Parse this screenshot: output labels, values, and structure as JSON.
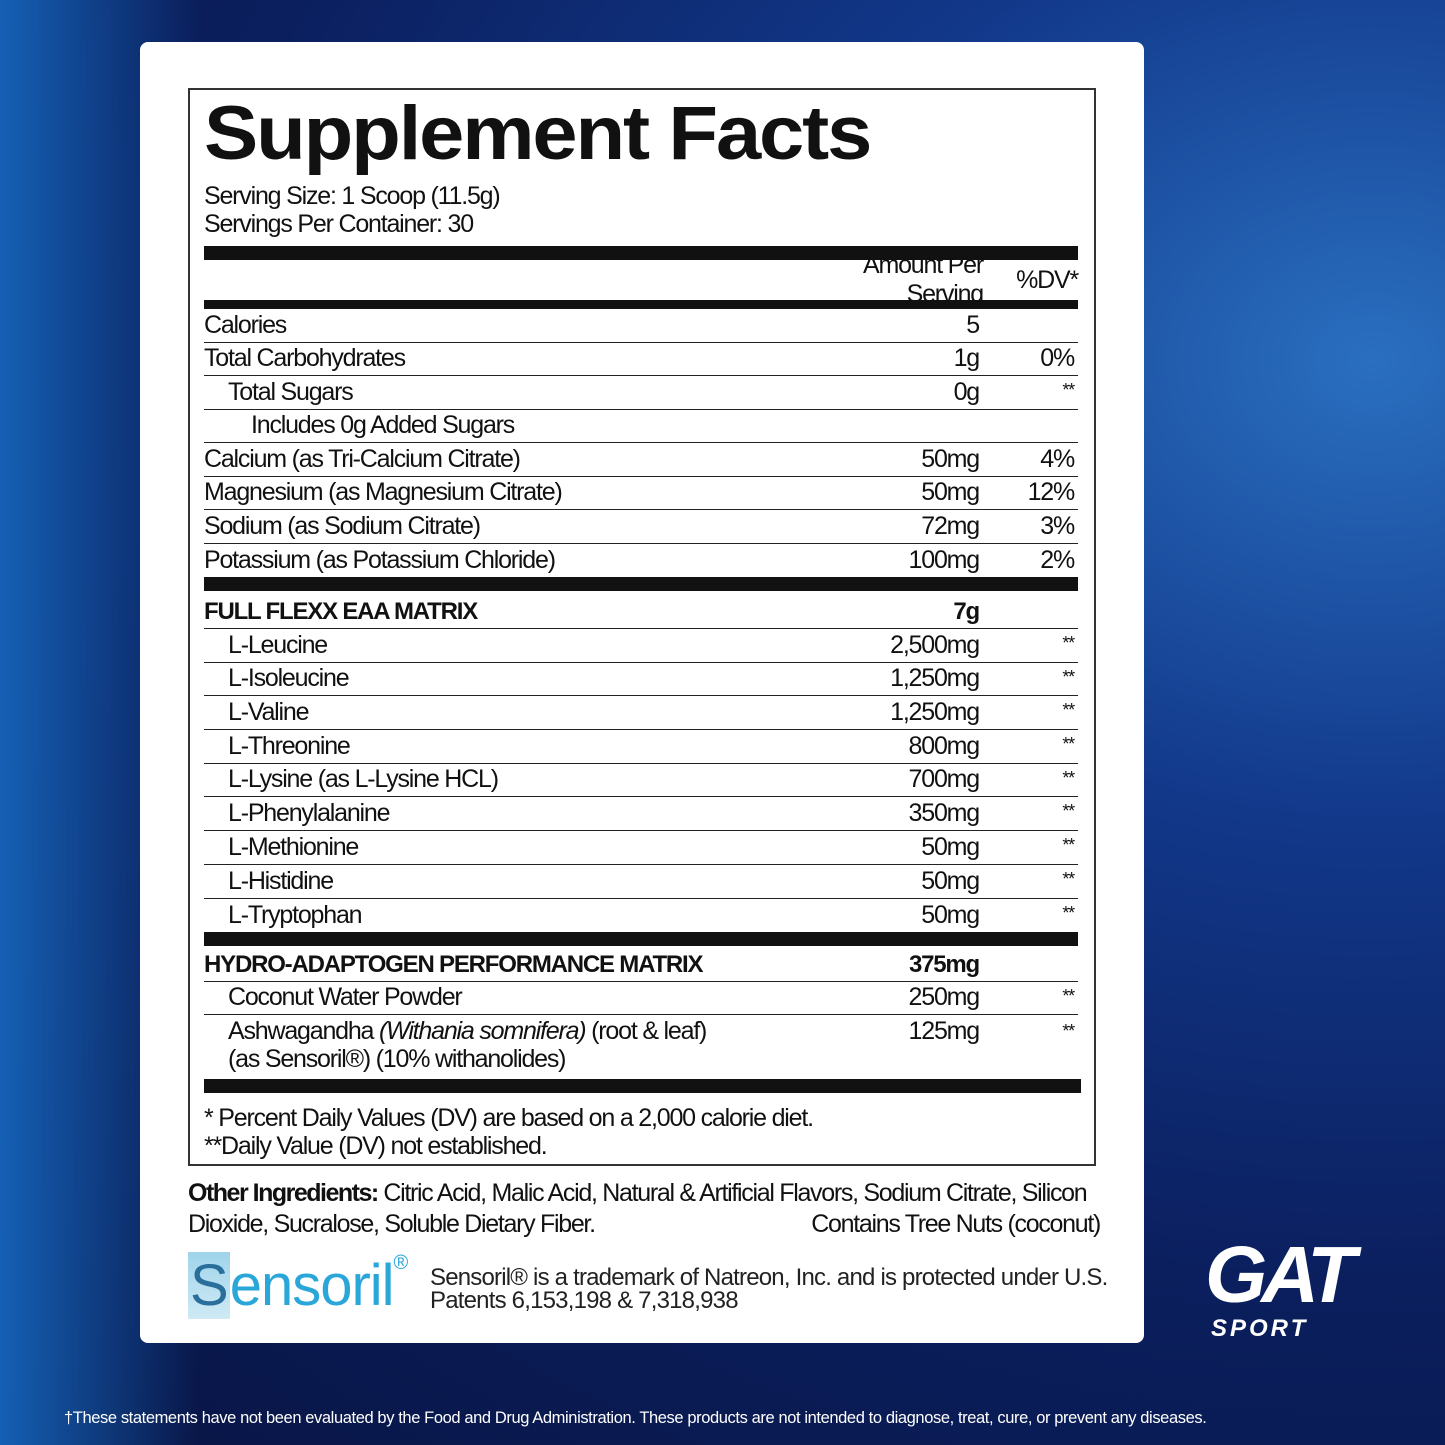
{
  "title": "Supplement Facts",
  "serving_size": "Serving Size: 1 Scoop (11.5g)",
  "servings_per_container": "Servings Per Container: 30",
  "header": {
    "amount": "Amount Per Serving",
    "dv": "%DV*"
  },
  "nutrients": [
    {
      "name": "Calories",
      "amount": "5",
      "dv": "",
      "indent": 0
    },
    {
      "name": "Total Carbohydrates",
      "amount": "1g",
      "dv": "0%",
      "indent": 0
    },
    {
      "name": "Total Sugars",
      "amount": "0g",
      "dv": "**",
      "indent": 1
    },
    {
      "name": "Includes 0g Added Sugars",
      "amount": "",
      "dv": "",
      "indent": 2
    },
    {
      "name": "Calcium (as Tri-Calcium Citrate)",
      "amount": "50mg",
      "dv": "4%",
      "indent": 0
    },
    {
      "name": "Magnesium (as Magnesium Citrate)",
      "amount": "50mg",
      "dv": "12%",
      "indent": 0
    },
    {
      "name": "Sodium (as Sodium Citrate)",
      "amount": "72mg",
      "dv": "3%",
      "indent": 0
    },
    {
      "name": "Potassium (as Potassium Chloride)",
      "amount": "100mg",
      "dv": "2%",
      "indent": 0
    }
  ],
  "eaa": {
    "name": "FULL FLEXX EAA MATRIX",
    "amount": "7g",
    "items": [
      {
        "name": "L-Leucine",
        "amount": "2,500mg",
        "dv": "**"
      },
      {
        "name": "L-Isoleucine",
        "amount": "1,250mg",
        "dv": "**"
      },
      {
        "name": "L-Valine",
        "amount": "1,250mg",
        "dv": "**"
      },
      {
        "name": "L-Threonine",
        "amount": "800mg",
        "dv": "**"
      },
      {
        "name": "L-Lysine (as L-Lysine HCL)",
        "amount": "700mg",
        "dv": "**"
      },
      {
        "name": "L-Phenylalanine",
        "amount": "350mg",
        "dv": "**"
      },
      {
        "name": "L-Methionine",
        "amount": "50mg",
        "dv": "**"
      },
      {
        "name": "L-Histidine",
        "amount": "50mg",
        "dv": "**"
      },
      {
        "name": "L-Tryptophan",
        "amount": "50mg",
        "dv": "**"
      }
    ]
  },
  "hydro": {
    "name": "HYDRO-ADAPTOGEN PERFORMANCE MATRIX",
    "amount": "375mg",
    "coconut": {
      "name": "Coconut Water Powder",
      "amount": "250mg",
      "dv": "**"
    },
    "ashwagandha": {
      "name": "Ashwagandha ",
      "latin": "(Withania somnifera)",
      "part": " (root & leaf)",
      "line2": "(as Sensoril®)  (10% withanolides)",
      "amount": "125mg",
      "dv": "**"
    }
  },
  "footnotes": [
    "* Percent Daily Values (DV) are based on a 2,000 calorie diet.",
    "**Daily Value (DV) not established."
  ],
  "other_ingredients": {
    "label": "Other Ingredients:",
    "text": " Citric Acid, Malic Acid, Natural & Artificial Flavors, Sodium Citrate, Silicon Dioxide, Sucralose, Soluble Dietary Fiber.",
    "allergen": "Contains Tree Nuts (coconut)"
  },
  "sensoril": {
    "logo": "Sensoril",
    "trademark": "Sensoril® is a trademark of Natreon, Inc. and is protected under U.S.",
    "patents": "Patents 6,153,198 & 7,318,938"
  },
  "brand": {
    "logo": "GAT",
    "sub": "SPORT"
  },
  "disclaimer": "†These statements have not been evaluated by the Food and Drug Administration. These products are not intended to diagnose, treat, cure, or prevent any diseases."
}
